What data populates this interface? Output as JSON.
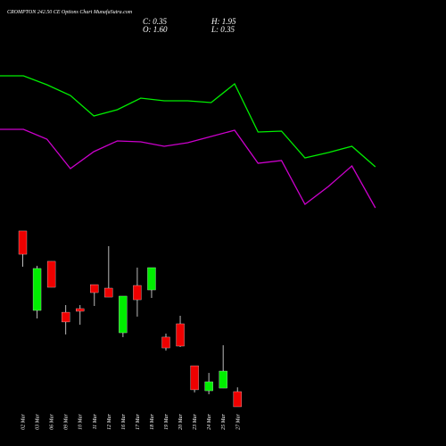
{
  "header": {
    "title": "CROMPTON 242.50 CE Options Chart MunafaSutra.com",
    "close": "C: 0.35",
    "open": "O: 1.60",
    "high": "H: 1.95",
    "low": "L: 0.35"
  },
  "chart_data": [
    {
      "type": "line",
      "ylim": [
        0,
        250
      ],
      "series": [
        {
          "color": "#00ee00",
          "values": [
            165,
            165,
            155,
            143,
            120,
            127,
            140,
            137,
            137,
            135,
            156,
            102,
            103,
            73,
            79,
            86,
            63
          ]
        },
        {
          "color": "#cc00cc",
          "values": [
            105,
            105,
            94,
            61,
            80,
            92,
            91,
            86,
            90,
            97,
            104,
            67,
            70,
            21,
            41,
            64,
            17
          ]
        }
      ]
    },
    {
      "type": "candlestick",
      "ylim": [
        0.35,
        15.13
      ],
      "up_color": "#00ee00",
      "down_color": "#ee0000",
      "categories": [
        "02 Mar",
        "03 Mar",
        "06 Mar",
        "09 Mar",
        "10 Mar",
        "11 Mar",
        "12 Mar",
        "16 Mar",
        "17 Mar",
        "18 Mar",
        "19 Mar",
        "20 Mar",
        "23 Mar",
        "24 Mar",
        "25 Mar",
        "27 Mar"
      ],
      "open": [
        14.84,
        8.29,
        12.34,
        8.14,
        8.44,
        10.42,
        10.13,
        6.45,
        10.35,
        9.98,
        6.09,
        7.19,
        3.73,
        1.67,
        1.89,
        1.6
      ],
      "high": [
        14.84,
        11.97,
        12.34,
        8.73,
        8.73,
        10.42,
        13.59,
        9.47,
        11.82,
        11.82,
        6.38,
        7.85,
        3.73,
        3.14,
        5.42,
        1.95
      ],
      "low": [
        11.89,
        7.63,
        10.2,
        6.31,
        7.11,
        8.66,
        9.39,
        6.09,
        7.78,
        9.32,
        4.98,
        5.28,
        1.53,
        1.38,
        1.89,
        0.35
      ],
      "close": [
        12.92,
        11.75,
        10.2,
        7.34,
        8.22,
        9.76,
        9.39,
        9.47,
        9.17,
        11.82,
        5.2,
        5.35,
        1.75,
        2.41,
        3.29,
        0.35
      ]
    }
  ]
}
